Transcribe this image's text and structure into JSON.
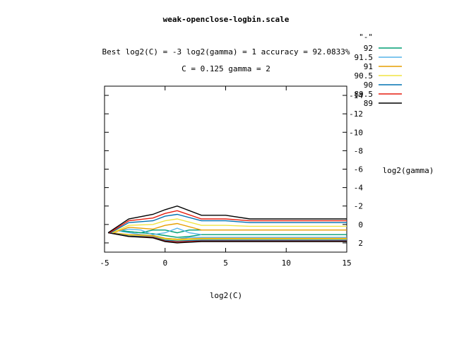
{
  "chart_data": {
    "type": "line",
    "title": "weak-openclose-logbin.scale",
    "subtitle_line1": "Best log2(C) = -3  log2(gamma) = 1  accuracy = 92.0833%",
    "subtitle_line2": "C = 0.125  gamma = 2",
    "xlabel": "log2(C)",
    "ylabel": "log2(gamma)",
    "xlim": [
      -5,
      15
    ],
    "ylim": [
      3,
      -15
    ],
    "x_ticks": [
      "-5",
      "0",
      "5",
      "10",
      "15"
    ],
    "y_ticks": [
      "-14",
      "-12",
      "-10",
      "-8",
      "-6",
      "-4",
      "-2",
      "0",
      "2"
    ],
    "legend_header": "\"-\"",
    "legend_position": "top-right",
    "grid": false,
    "series": [
      {
        "name": "92",
        "color": "#009e73",
        "points": [
          [
            -3.6,
            0.7
          ],
          [
            -2,
            0.9
          ],
          [
            -1,
            0.6
          ],
          [
            0,
            0.6
          ],
          [
            1,
            0.9
          ],
          [
            2,
            0.6
          ],
          [
            3,
            0.6
          ]
        ]
      },
      {
        "name": "91.5",
        "color": "#56b4e9",
        "points": [
          [
            -3.8,
            0.7
          ],
          [
            -3,
            0.5
          ],
          [
            -2,
            0.6
          ],
          [
            -1,
            1.1
          ],
          [
            0,
            0.9
          ],
          [
            1,
            0.4
          ],
          [
            2,
            0.9
          ],
          [
            3,
            1.1
          ]
        ]
      },
      {
        "name": "91",
        "color": "#e69f00",
        "points": [
          [
            -4.3,
            0.9
          ],
          [
            -3,
            0.3
          ],
          [
            -1,
            0.5
          ],
          [
            0,
            0.1
          ],
          [
            1,
            -0.1
          ],
          [
            3,
            0.6
          ],
          [
            5,
            0.6
          ],
          [
            7,
            0.6
          ],
          [
            15,
            0.6
          ]
        ]
      },
      {
        "name": "90.5",
        "color": "#f0e442",
        "points": [
          [
            -4.4,
            0.9
          ],
          [
            -3,
            0.1
          ],
          [
            -1,
            0
          ],
          [
            0,
            -0.4
          ],
          [
            1,
            -0.6
          ],
          [
            3,
            0.1
          ],
          [
            5,
            0.1
          ],
          [
            7,
            0.2
          ],
          [
            15,
            0.2
          ]
        ]
      },
      {
        "name": "90",
        "color": "#0072b2",
        "points": [
          [
            -4.5,
            0.9
          ],
          [
            -3,
            -0.2
          ],
          [
            -1,
            -0.4
          ],
          [
            0,
            -0.9
          ],
          [
            1,
            -1.1
          ],
          [
            3,
            -0.4
          ],
          [
            5,
            -0.4
          ],
          [
            7,
            -0.2
          ],
          [
            15,
            -0.2
          ]
        ]
      },
      {
        "name": "89.5",
        "color": "#e51e10",
        "points": [
          [
            -4.6,
            0.9
          ],
          [
            -3,
            -0.4
          ],
          [
            -1,
            -0.7
          ],
          [
            0,
            -1.2
          ],
          [
            1,
            -1.5
          ],
          [
            3,
            -0.6
          ],
          [
            5,
            -0.6
          ],
          [
            7,
            -0.4
          ],
          [
            15,
            -0.4
          ]
        ]
      },
      {
        "name": "89",
        "color": "#000000",
        "points": [
          [
            -4.7,
            0.9
          ],
          [
            -3,
            -0.6
          ],
          [
            -1,
            -1.1
          ],
          [
            0,
            -1.6
          ],
          [
            1,
            -2
          ],
          [
            3,
            -1
          ],
          [
            5,
            -1
          ],
          [
            7,
            -0.6
          ],
          [
            15,
            -0.6
          ]
        ]
      }
    ],
    "lower_branches": [
      {
        "color": "#009e73",
        "points": [
          [
            -3.6,
            0.7
          ],
          [
            -2,
            0.9
          ],
          [
            -1,
            1
          ],
          [
            0,
            1.2
          ],
          [
            1,
            1.4
          ],
          [
            2,
            1.3
          ],
          [
            3,
            1.1
          ],
          [
            15,
            1.1
          ]
        ]
      },
      {
        "color": "#56b4e9",
        "points": [
          [
            -3.8,
            0.7
          ],
          [
            -2,
            1.1
          ],
          [
            -1,
            1.2
          ],
          [
            0,
            1.5
          ],
          [
            1,
            1.6
          ],
          [
            2,
            1.4
          ],
          [
            3,
            1.4
          ],
          [
            15,
            1.4
          ]
        ]
      },
      {
        "color": "#e69f00",
        "points": [
          [
            -4.3,
            0.9
          ],
          [
            -3,
            1.1
          ],
          [
            -1,
            1.2
          ],
          [
            0,
            1.5
          ],
          [
            1,
            1.6
          ],
          [
            3,
            1.5
          ],
          [
            15,
            1.5
          ]
        ]
      },
      {
        "color": "#f0e442",
        "points": [
          [
            -4.4,
            0.9
          ],
          [
            -3,
            1.2
          ],
          [
            -1,
            1.3
          ],
          [
            0,
            1.6
          ],
          [
            1,
            1.7
          ],
          [
            3,
            1.6
          ],
          [
            15,
            1.6
          ]
        ]
      },
      {
        "color": "#0072b2",
        "points": [
          [
            -4.5,
            0.9
          ],
          [
            -3,
            1.25
          ],
          [
            -1,
            1.35
          ],
          [
            0,
            1.7
          ],
          [
            1,
            1.8
          ],
          [
            3,
            1.7
          ],
          [
            15,
            1.7
          ]
        ]
      },
      {
        "color": "#e51e10",
        "points": [
          [
            -4.6,
            0.9
          ],
          [
            -3,
            1.3
          ],
          [
            -1,
            1.4
          ],
          [
            0,
            1.8
          ],
          [
            1,
            1.9
          ],
          [
            3,
            1.8
          ],
          [
            15,
            1.8
          ]
        ]
      },
      {
        "color": "#000000",
        "points": [
          [
            -4.7,
            0.9
          ],
          [
            -3,
            1.3
          ],
          [
            -1,
            1.45
          ],
          [
            0,
            1.85
          ],
          [
            1,
            2
          ],
          [
            3,
            1.85
          ],
          [
            15,
            1.85
          ]
        ]
      }
    ]
  }
}
